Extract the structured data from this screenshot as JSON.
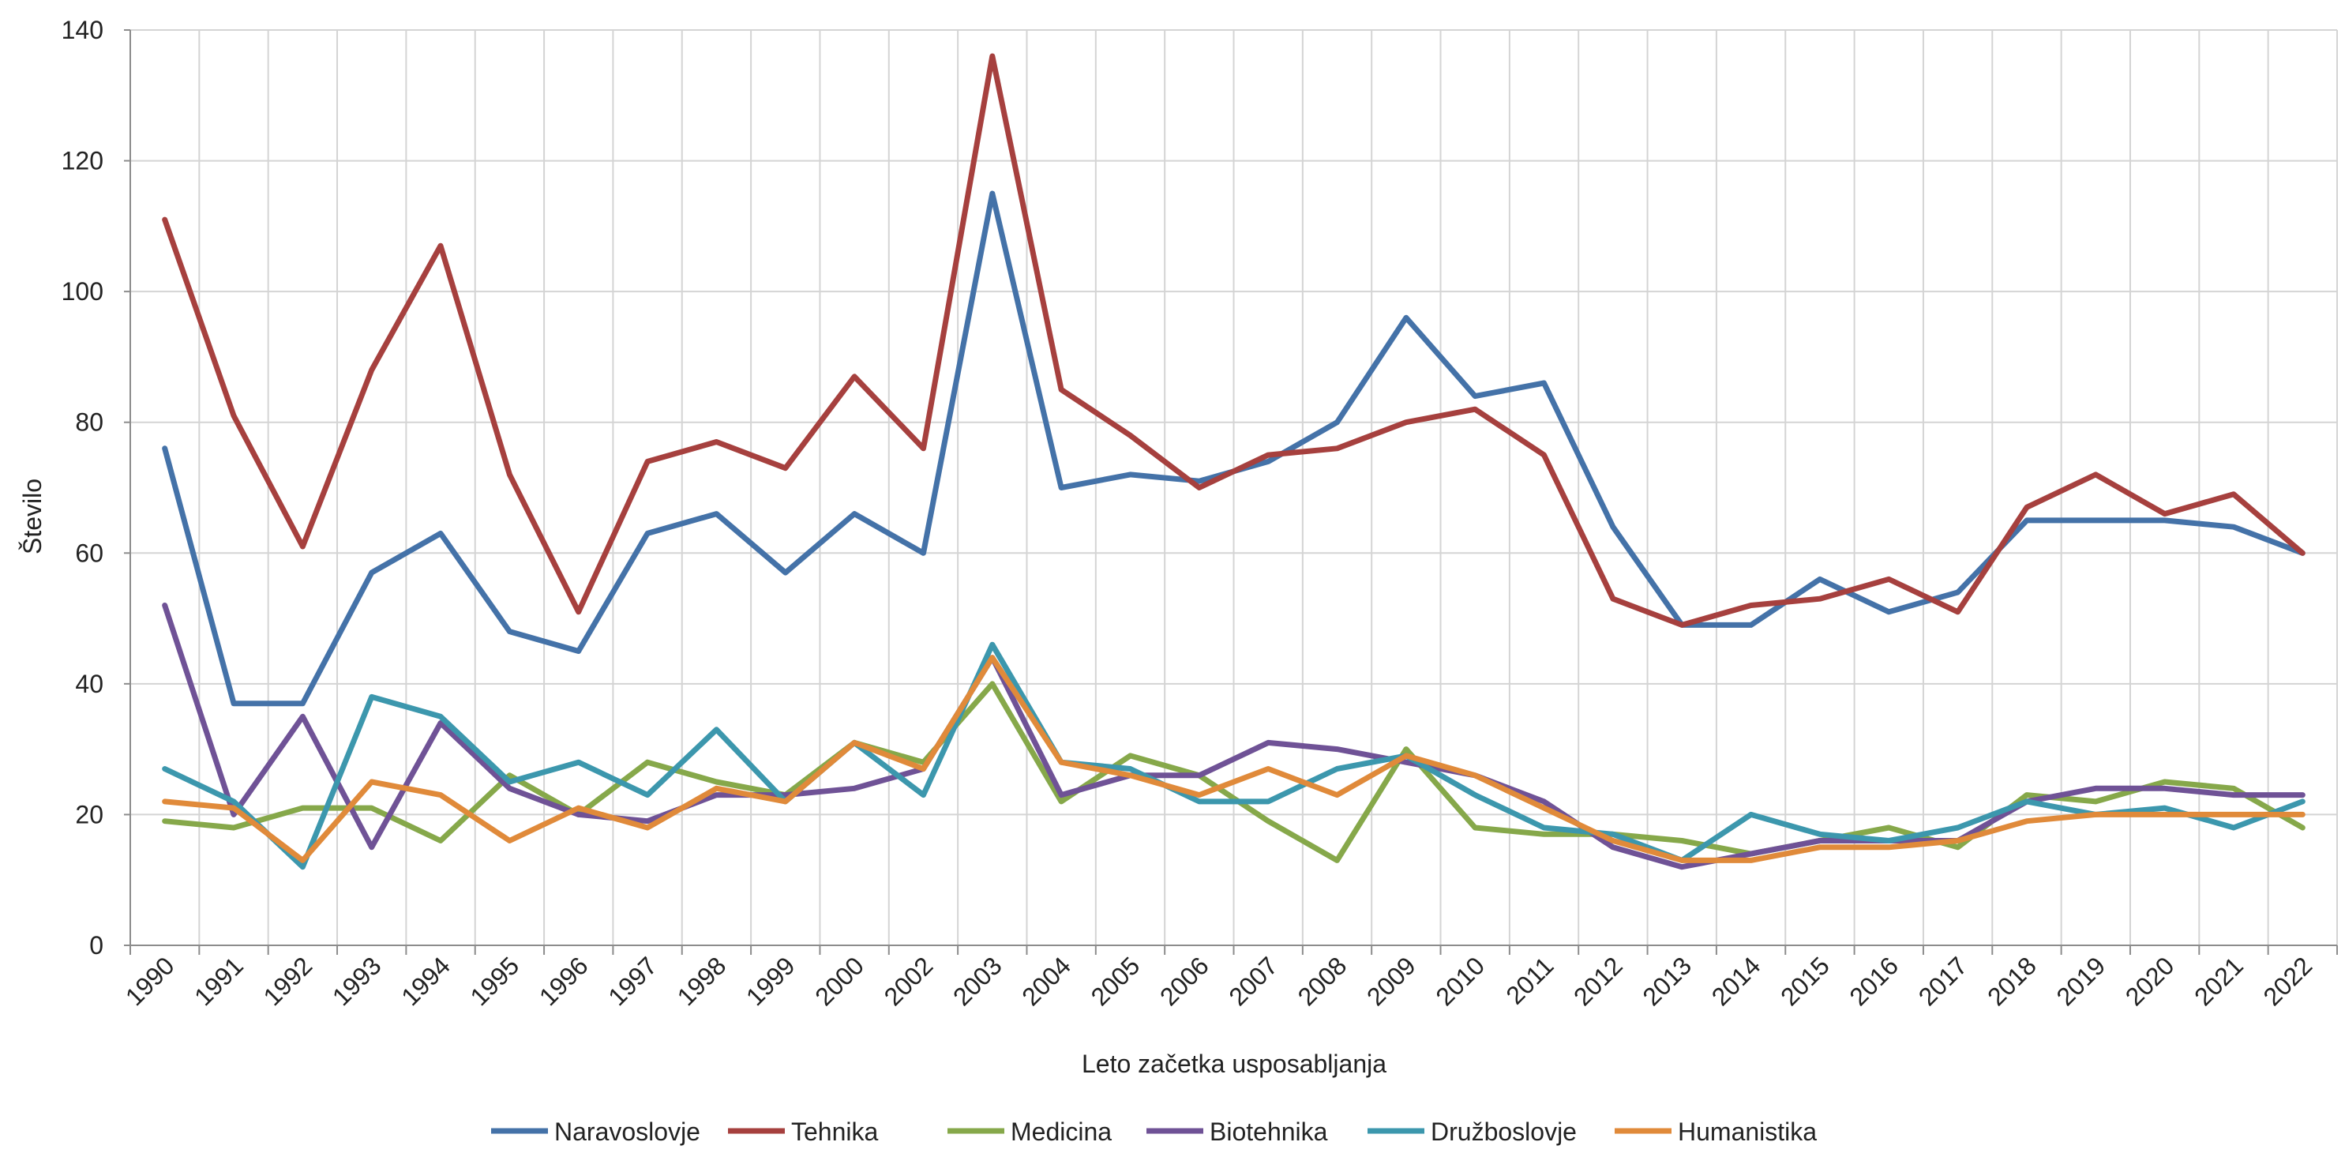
{
  "chart_data": {
    "type": "line",
    "xlabel": "Leto začetka usposabljanja",
    "ylabel": "Število",
    "ylim": [
      0,
      140
    ],
    "yticks": [
      0,
      20,
      40,
      60,
      80,
      100,
      120,
      140
    ],
    "grid": true,
    "legend_position": "bottom",
    "categories": [
      "1990",
      "1991",
      "1992",
      "1993",
      "1994",
      "1995",
      "1996",
      "1997",
      "1998",
      "1999",
      "2000",
      "2002",
      "2003",
      "2004",
      "2005",
      "2006",
      "2007",
      "2008",
      "2009",
      "2010",
      "2011",
      "2012",
      "2013",
      "2014",
      "2015",
      "2016",
      "2017",
      "2018",
      "2019",
      "2020",
      "2021",
      "2022"
    ],
    "series": [
      {
        "name": "Naravoslovje",
        "color": "#4472a8",
        "values": [
          76,
          37,
          37,
          57,
          63,
          48,
          45,
          63,
          66,
          57,
          66,
          60,
          115,
          70,
          72,
          71,
          74,
          80,
          96,
          84,
          86,
          64,
          49,
          49,
          56,
          51,
          54,
          65,
          65,
          65,
          64,
          60
        ]
      },
      {
        "name": "Tehnika",
        "color": "#a6403e",
        "values": [
          111,
          81,
          61,
          88,
          107,
          72,
          51,
          74,
          77,
          73,
          87,
          76,
          136,
          85,
          78,
          70,
          75,
          76,
          80,
          82,
          75,
          53,
          49,
          52,
          53,
          56,
          51,
          67,
          72,
          66,
          69,
          60
        ]
      },
      {
        "name": "Medicina",
        "color": "#86a84a",
        "values": [
          19,
          18,
          21,
          21,
          16,
          26,
          20,
          28,
          25,
          23,
          31,
          28,
          40,
          22,
          29,
          26,
          19,
          13,
          30,
          18,
          17,
          17,
          16,
          14,
          16,
          18,
          15,
          23,
          22,
          25,
          24,
          18
        ]
      },
      {
        "name": "Biotehnika",
        "color": "#6f5296",
        "values": [
          52,
          20,
          35,
          15,
          34,
          24,
          20,
          19,
          23,
          23,
          24,
          27,
          44,
          23,
          26,
          26,
          31,
          30,
          28,
          26,
          22,
          15,
          12,
          14,
          16,
          16,
          16,
          22,
          24,
          24,
          23,
          23
        ]
      },
      {
        "name": "Družboslovje",
        "color": "#3c97ad",
        "values": [
          27,
          22,
          12,
          38,
          35,
          25,
          28,
          23,
          33,
          22,
          31,
          23,
          46,
          28,
          27,
          22,
          22,
          27,
          29,
          23,
          18,
          17,
          13,
          20,
          17,
          16,
          18,
          22,
          20,
          21,
          18,
          22
        ]
      },
      {
        "name": "Humanistika",
        "color": "#e08a3a",
        "values": [
          22,
          21,
          13,
          25,
          23,
          16,
          21,
          18,
          24,
          22,
          31,
          27,
          44,
          28,
          26,
          23,
          27,
          23,
          29,
          26,
          21,
          16,
          13,
          13,
          15,
          15,
          16,
          19,
          20,
          20,
          20,
          20
        ]
      }
    ]
  }
}
